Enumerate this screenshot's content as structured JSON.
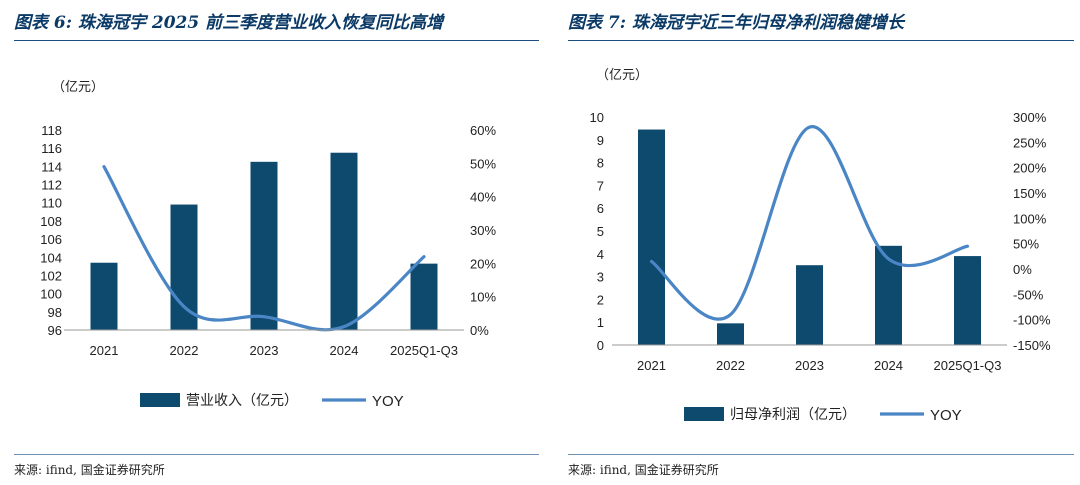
{
  "panels": [
    {
      "title": "图表 6: 珠海冠宇 2025 前三季度营业收入恢复同比高增",
      "source": "来源: ifind, 国金证券研究所"
    },
    {
      "title": "图表 7: 珠海冠宇近三年归母净利润稳健增长",
      "source": "来源: ifind, 国金证券研究所"
    }
  ],
  "colors": {
    "bar": "#0d4a6e",
    "line": "#4a86c5",
    "title": "#0b3a66"
  },
  "chart_data": [
    {
      "type": "bar+line",
      "categories": [
        "2021",
        "2022",
        "2023",
        "2024",
        "2025Q1-Q3"
      ],
      "series": [
        {
          "name": "营业收入（亿元）",
          "kind": "bar",
          "axis": "left",
          "values": [
            103.4,
            109.8,
            114.5,
            115.5,
            103.3
          ]
        },
        {
          "name": "YOY",
          "kind": "line",
          "axis": "right",
          "values": [
            0.49,
            0.07,
            0.04,
            0.01,
            0.22
          ]
        }
      ],
      "unit_label": "（亿元）",
      "ylim": [
        96,
        118
      ],
      "yticks": [
        "96",
        "98",
        "100",
        "102",
        "104",
        "106",
        "108",
        "110",
        "112",
        "114",
        "116",
        "118"
      ],
      "y2lim": [
        0,
        0.6
      ],
      "y2ticks": [
        "0%",
        "10%",
        "20%",
        "30%",
        "40%",
        "50%",
        "60%"
      ],
      "legend": [
        "营业收入（亿元）",
        "YOY"
      ]
    },
    {
      "type": "bar+line",
      "categories": [
        "2021",
        "2022",
        "2023",
        "2024",
        "2025Q1-Q3"
      ],
      "series": [
        {
          "name": "归母净利润（亿元）",
          "kind": "bar",
          "axis": "left",
          "values": [
            9.45,
            0.95,
            3.5,
            4.35,
            3.9
          ]
        },
        {
          "name": "YOY",
          "kind": "line",
          "axis": "right",
          "values": [
            0.15,
            -0.9,
            2.8,
            0.2,
            0.45
          ]
        }
      ],
      "unit_label": "（亿元）",
      "ylim": [
        0,
        10
      ],
      "yticks": [
        "0",
        "1",
        "2",
        "3",
        "4",
        "5",
        "6",
        "7",
        "8",
        "9",
        "10"
      ],
      "y2lim": [
        -1.5,
        3
      ],
      "y2ticks": [
        "-150%",
        "-100%",
        "-50%",
        "0%",
        "50%",
        "100%",
        "150%",
        "200%",
        "250%",
        "300%"
      ],
      "legend": [
        "归母净利润（亿元）",
        "YOY"
      ]
    }
  ]
}
